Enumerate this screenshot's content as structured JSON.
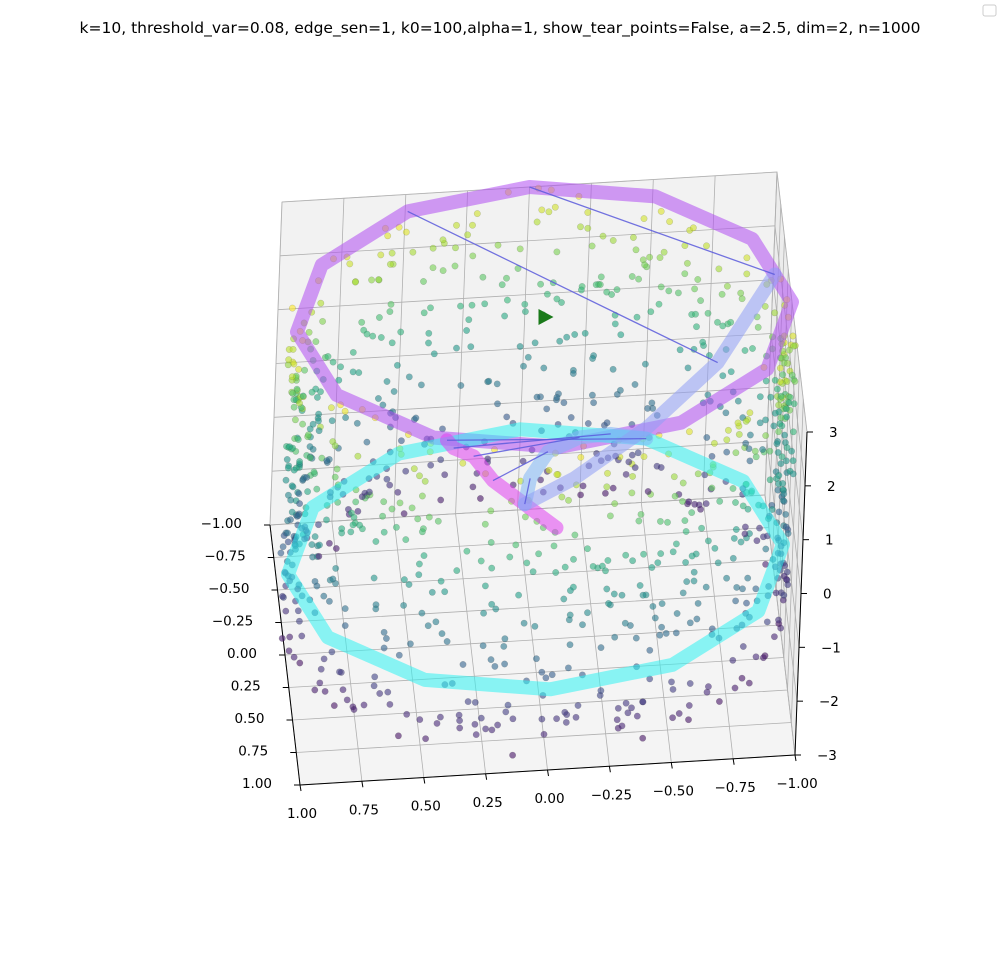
{
  "title": "k=10, threshold_var=0.08, edge_sen=1, k0=100,alpha=1, show_tear_points=False, a=2.5, dim=2, n=1000",
  "chart_data": {
    "type": "scatter",
    "projection": "3d",
    "title": "k=10, threshold_var=0.08, edge_sen=1, k0=100,alpha=1, show_tear_points=False, a=2.5, dim=2, n=1000",
    "xlabel": "",
    "ylabel": "",
    "zlabel": "",
    "xlim": [
      -1,
      1
    ],
    "ylim": [
      -1,
      1
    ],
    "zlim": [
      -3,
      3
    ],
    "x_ticks": [
      "1.00",
      "0.75",
      "0.50",
      "0.25",
      "0.00",
      "−0.25",
      "−0.50",
      "−0.75",
      "−1.00"
    ],
    "y_ticks": [
      "1.00",
      "0.75",
      "0.50",
      "0.25",
      "0.00",
      "−0.25",
      "−0.50",
      "−0.75",
      "−1.00"
    ],
    "z_ticks": [
      "3",
      "2",
      "1",
      "0",
      "−1",
      "−2",
      "−3"
    ],
    "grid": true,
    "legend": "top-right (empty)",
    "point_colormap": "viridis (by height)",
    "n_points": 1000,
    "marker": {
      "symbol": "triangle-right",
      "color": "#1a7a1a",
      "x": 0.0,
      "y": 0.0,
      "z": 3.0
    },
    "colors": {
      "top_loop": "#b14cf2",
      "lower_loop": "#2ff2f2",
      "spine": "#e03ff0",
      "right_branch": "#7fb6f5",
      "upper_branch": "#8f9ff5",
      "edges": "#5b5bdc"
    },
    "paths": [
      {
        "id": "top_loop",
        "style": "thick",
        "points": [
          [
            1.0,
            0.0,
            3
          ],
          [
            0.87,
            0.5,
            3
          ],
          [
            0.5,
            0.87,
            3
          ],
          [
            0.0,
            1.0,
            3
          ],
          [
            -0.5,
            0.87,
            3
          ],
          [
            -0.87,
            0.5,
            3
          ],
          [
            -1.0,
            0.0,
            3
          ],
          [
            -0.87,
            -0.5,
            3
          ],
          [
            -0.5,
            -0.87,
            3
          ],
          [
            0.0,
            -1.0,
            3
          ],
          [
            0.5,
            -0.87,
            3
          ],
          [
            0.87,
            -0.5,
            3
          ],
          [
            1.0,
            0.0,
            3
          ]
        ]
      },
      {
        "id": "lower_loop",
        "style": "thick",
        "points": [
          [
            1.0,
            0.0,
            -1.5
          ],
          [
            0.87,
            0.5,
            -1.5
          ],
          [
            0.5,
            0.87,
            -1.5
          ],
          [
            0.0,
            1.0,
            -1.5
          ],
          [
            -0.5,
            0.87,
            -1.5
          ],
          [
            -0.87,
            0.5,
            -1.5
          ],
          [
            -1.0,
            0.0,
            -1.5
          ],
          [
            -0.87,
            -0.5,
            -1.5
          ],
          [
            -0.5,
            -0.87,
            -1.5
          ],
          [
            0.0,
            -1.0,
            -1.5
          ],
          [
            0.5,
            -0.87,
            -1.5
          ],
          [
            0.87,
            -0.5,
            -1.5
          ],
          [
            1.0,
            0.0,
            -1.5
          ]
        ]
      },
      {
        "id": "spine",
        "style": "thick",
        "points": [
          [
            0.0,
            1.0,
            1.5
          ],
          [
            0.1,
            0.6,
            1.0
          ],
          [
            0.2,
            0.2,
            0.5
          ],
          [
            0.25,
            -0.2,
            0.0
          ],
          [
            0.3,
            -0.6,
            -0.8
          ],
          [
            0.3,
            -0.95,
            -1.5
          ]
        ]
      },
      {
        "id": "right_branch",
        "style": "thick",
        "points": [
          [
            0.1,
            0.6,
            1.0
          ],
          [
            0.05,
            0.2,
            0.5
          ],
          [
            -0.05,
            -0.2,
            0.0
          ],
          [
            -0.2,
            -0.5,
            -0.5
          ],
          [
            -0.35,
            -0.8,
            -1.2
          ],
          [
            -0.5,
            -0.87,
            -1.5
          ]
        ]
      },
      {
        "id": "upper_branch",
        "style": "thick",
        "points": [
          [
            -0.95,
            -0.3,
            2.8
          ],
          [
            -0.7,
            0.1,
            2.2
          ],
          [
            -0.4,
            0.4,
            1.8
          ],
          [
            -0.1,
            0.55,
            1.3
          ],
          [
            0.1,
            0.6,
            1.0
          ]
        ]
      }
    ]
  }
}
